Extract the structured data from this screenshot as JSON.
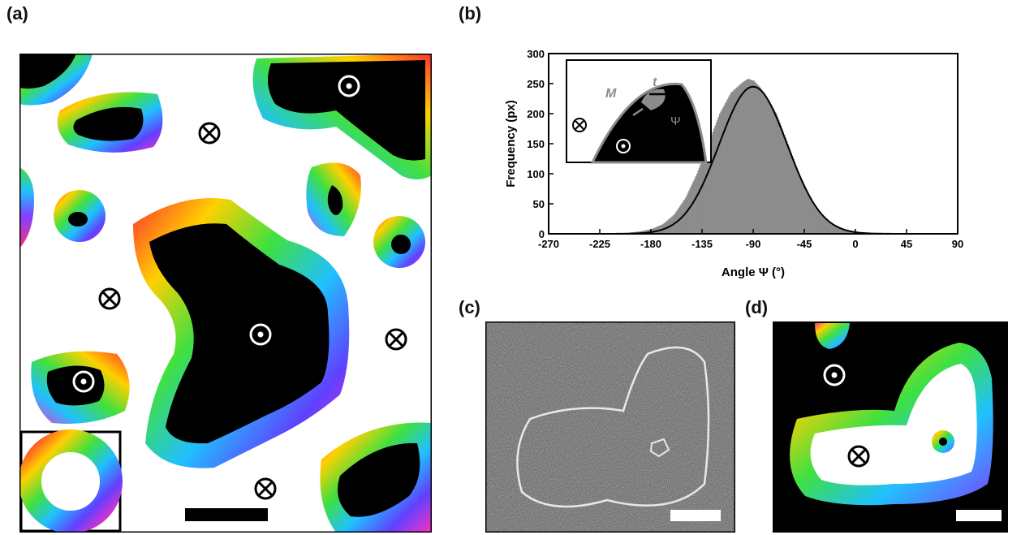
{
  "panels": {
    "a": {
      "label": "(a)"
    },
    "b": {
      "label": "(b)"
    },
    "c": {
      "label": "(c)"
    },
    "d": {
      "label": "(d)"
    }
  },
  "chart_data": {
    "type": "bar",
    "title": "",
    "xlabel": "Angle Ψ (°)",
    "ylabel": "Frequency (px)",
    "xlim": [
      -270,
      90
    ],
    "ylim": [
      0,
      300
    ],
    "xticks": [
      -270,
      -225,
      -180,
      -135,
      -90,
      -45,
      0,
      45,
      90
    ],
    "yticks": [
      0,
      50,
      100,
      150,
      200,
      250,
      300
    ],
    "x": [
      -200,
      -190,
      -180,
      -170,
      -160,
      -150,
      -140,
      -130,
      -120,
      -110,
      -100,
      -95,
      -90,
      -85,
      -80,
      -70,
      -60,
      -50,
      -40,
      -30,
      -20,
      -10,
      0,
      10
    ],
    "values": [
      2,
      4,
      8,
      16,
      32,
      60,
      100,
      150,
      200,
      235,
      252,
      258,
      255,
      245,
      232,
      200,
      150,
      100,
      60,
      30,
      14,
      6,
      3,
      1
    ],
    "fit": {
      "type": "gaussian",
      "center": -90,
      "peak": 245,
      "sigma": 30
    },
    "inset": {
      "vector_M": "M",
      "vector_t": "t",
      "angle": "Ψ"
    }
  },
  "colors": {
    "histogram": "#8c8c8c",
    "fit": "#000000",
    "domain": "#000000",
    "background": "#ffffff"
  }
}
